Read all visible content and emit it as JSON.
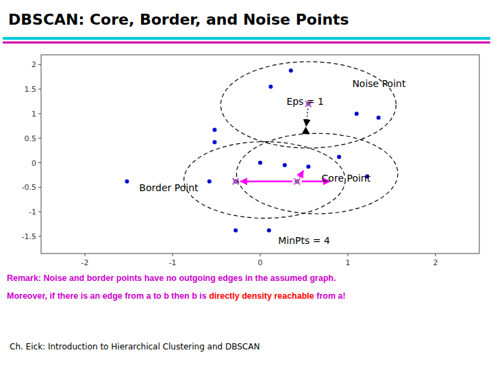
{
  "chart_data": {
    "type": "scatter",
    "title": "DBSCAN: Core, Border, and Noise Points",
    "xlim": [
      -2.5,
      2.5
    ],
    "ylim": [
      -1.85,
      2.2
    ],
    "xticks": [
      -2,
      -1,
      0,
      1,
      2
    ],
    "yticks": [
      -1.5,
      -1,
      -0.5,
      0,
      0.5,
      1,
      1.5,
      2
    ],
    "grid": false,
    "series": [
      {
        "x": [
          0.35,
          0.12,
          -0.52,
          -0.52,
          0.0,
          0.28,
          -0.58,
          -1.52,
          -0.28,
          0.1,
          0.55,
          0.9,
          1.1,
          1.35,
          1.22
        ],
        "values": [
          1.88,
          1.55,
          0.67,
          0.42,
          0.0,
          -0.05,
          -0.38,
          -0.38,
          -1.38,
          -1.38,
          -0.08,
          0.12,
          1.0,
          0.92,
          -0.28
        ],
        "color": "#0000cd",
        "marker": "circle"
      },
      {
        "x": [
          0.55,
          -0.28,
          0.42
        ],
        "values": [
          1.2,
          -0.38,
          -0.38
        ],
        "color": "#0000cd",
        "marker": "circle"
      },
      {
        "x": [
          0.55,
          -0.28,
          0.42
        ],
        "values": [
          1.2,
          -0.38,
          -0.38
        ],
        "color": "#cc55bb",
        "marker": "x"
      },
      {
        "x": [
          0.52
        ],
        "values": [
          0.65
        ],
        "color": "black",
        "marker": "triangle"
      }
    ],
    "ellipses": [
      {
        "cx": 0.55,
        "cy": 1.18,
        "rx": 1.0,
        "ry": 0.88
      },
      {
        "cx": 0.05,
        "cy": -0.35,
        "rx": 0.92,
        "ry": 0.78
      },
      {
        "cx": 0.65,
        "cy": -0.22,
        "rx": 0.92,
        "ry": 0.82
      }
    ],
    "ellipse_line_style": "dashed",
    "arrows": [
      {
        "x1": 0.55,
        "y1": 1.2,
        "x2": 0.52,
        "y2": 0.65,
        "color": "black",
        "line_style": "dotted"
      },
      {
        "x1": 0.42,
        "y1": -0.38,
        "x2": 0.52,
        "y2": -0.08,
        "color": "magenta",
        "line_style": "solid"
      },
      {
        "x1": 0.42,
        "y1": -0.38,
        "x2": 0.85,
        "y2": -0.38,
        "color": "magenta",
        "line_style": "solid"
      },
      {
        "x1": 0.42,
        "y1": -0.38,
        "x2": -0.28,
        "y2": -0.38,
        "color": "magenta",
        "line_style": "solid"
      }
    ],
    "annotations": [
      {
        "text": "Eps = 1",
        "x": 0.3,
        "y": 1.18
      },
      {
        "text": "Noise Point",
        "x": 1.05,
        "y": 1.55
      },
      {
        "text": "Border Point",
        "x": -1.38,
        "y": -0.58
      },
      {
        "text": "Core Point",
        "x": 0.7,
        "y": -0.38
      },
      {
        "text": "MinPts = 4",
        "x": 0.5,
        "y": -1.65
      }
    ],
    "accent_colors": [
      "#00ccdd",
      "#cc00aa"
    ],
    "remarks": [
      {
        "segments": [
          {
            "text": "Remark: Noise and border points have no outgoing edges in the assumed graph.",
            "color": "#cc00cc"
          }
        ]
      },
      {
        "segments": [
          {
            "text": "Moreover, if there is an edge from a to b then b is ",
            "color": "#cc00cc"
          },
          {
            "text": "directly density reachable",
            "color": "#ff0000"
          },
          {
            "text": " from a!",
            "color": "#cc00cc"
          }
        ]
      }
    ],
    "citation": "Ch. Eick: Introduction to Hierarchical Clustering and DBSCAN"
  }
}
